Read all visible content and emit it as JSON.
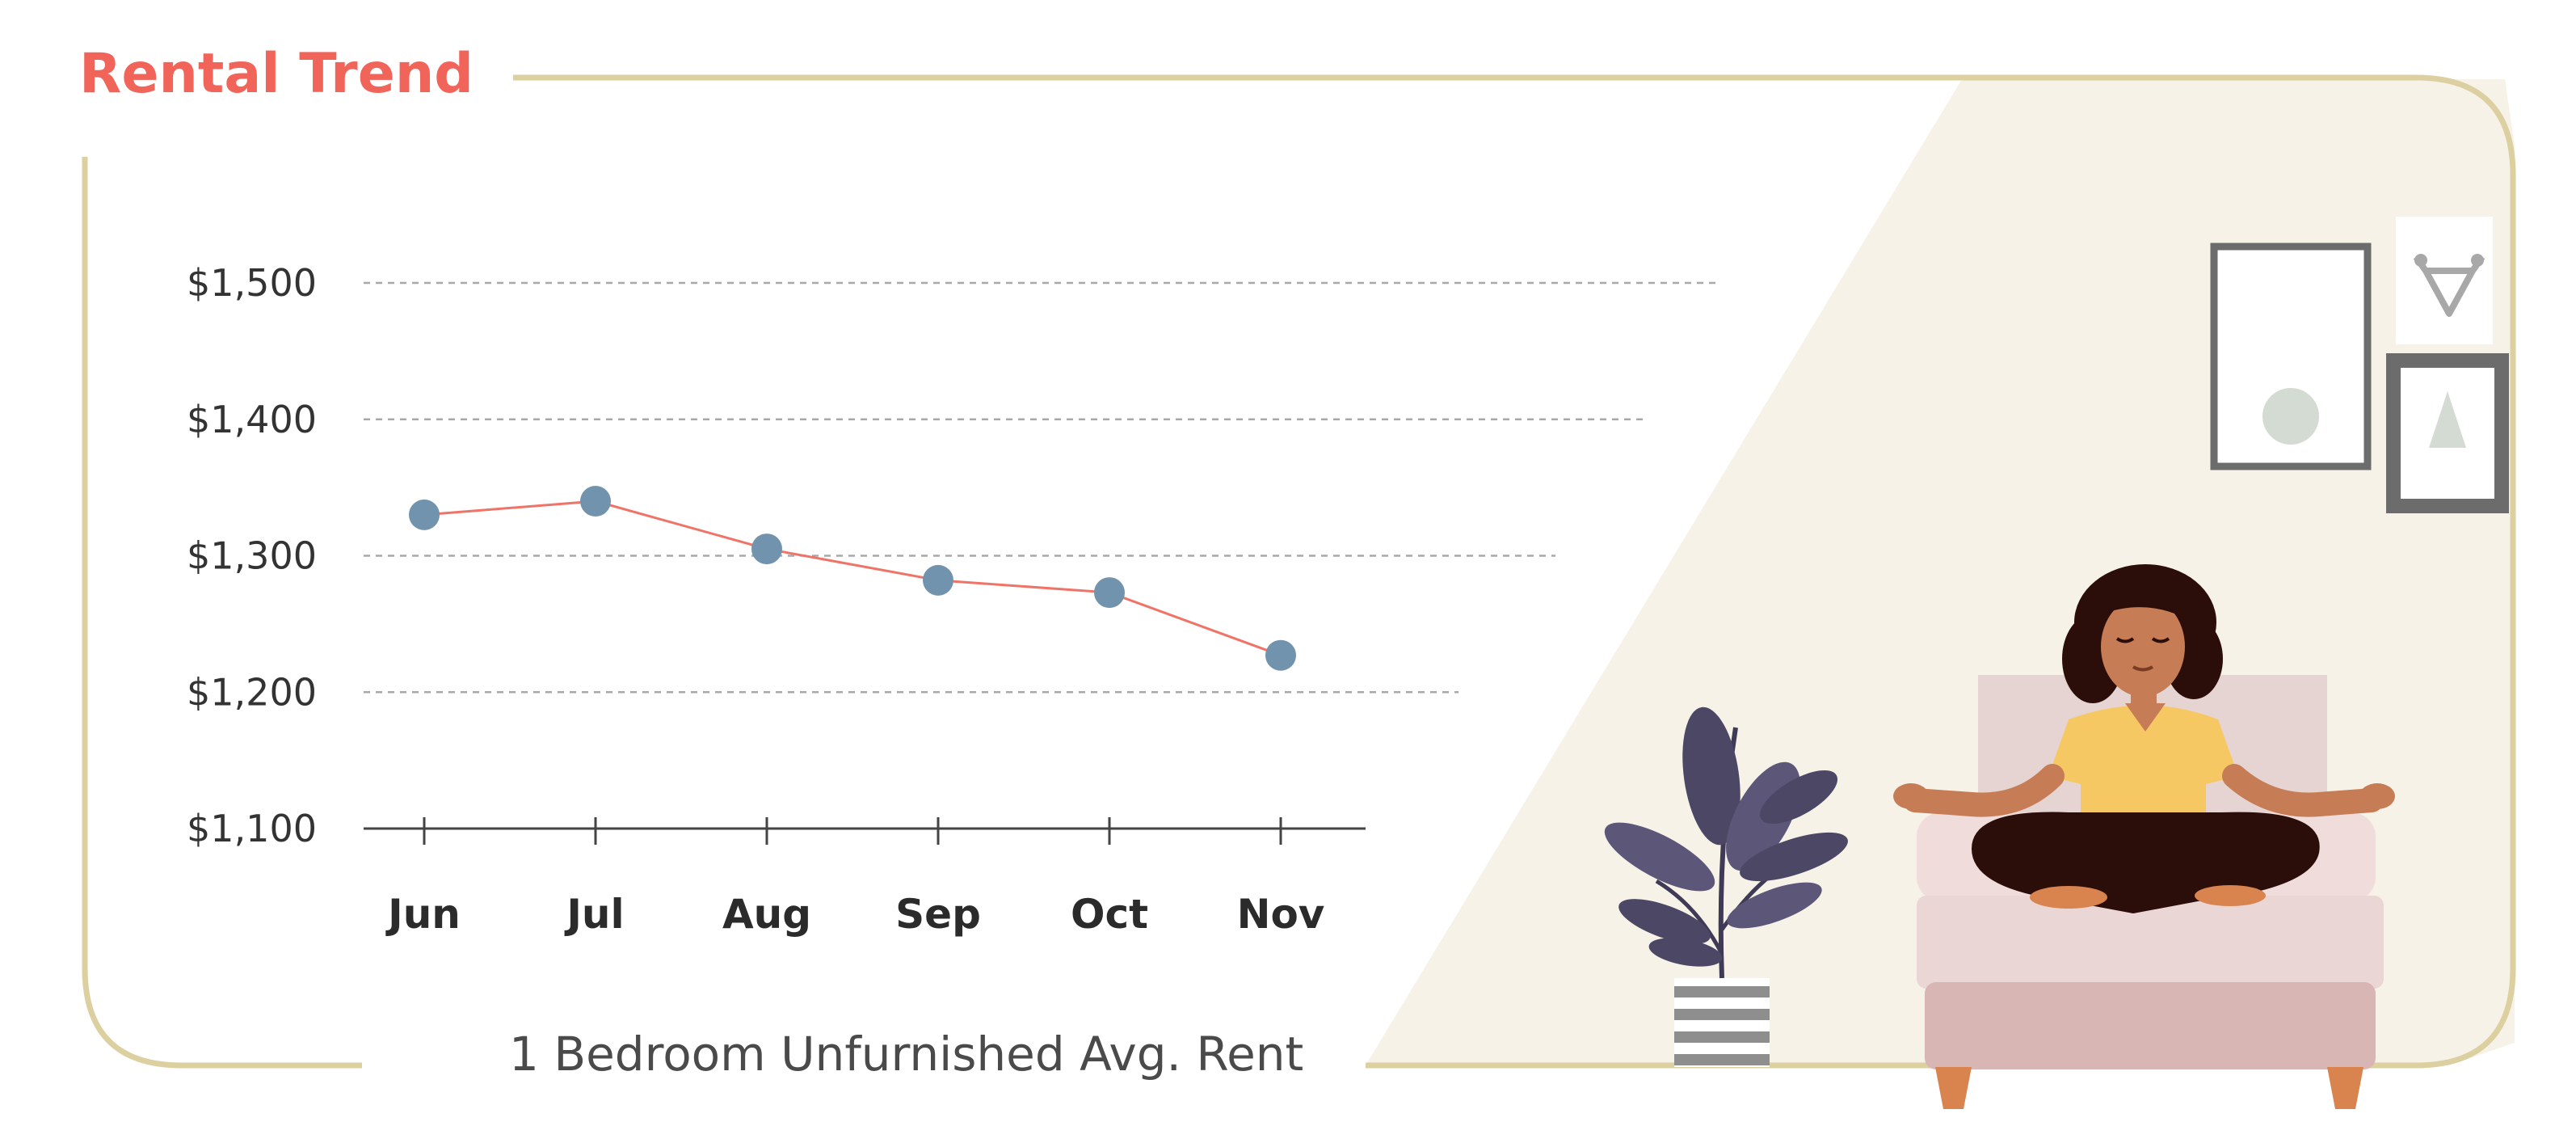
{
  "title": "Rental Trend",
  "caption": "1 Bedroom Unfurnished Avg. Rent",
  "colors": {
    "title": "#f1645a",
    "line": "#ef7467",
    "marker": "#7293ad",
    "frame": "#dccfa0",
    "room": "#f6f2e7"
  },
  "chart_data": {
    "type": "line",
    "title": "Rental Trend",
    "xlabel": "",
    "ylabel": "",
    "categories": [
      "Jun",
      "Jul",
      "Aug",
      "Sep",
      "Oct",
      "Nov"
    ],
    "series": [
      {
        "values": [
          1330,
          1340,
          1305,
          1282,
          1273,
          1227
        ]
      }
    ],
    "ylim": [
      1100,
      1500
    ],
    "yticks": [
      1100,
      1200,
      1300,
      1400,
      1500
    ],
    "ytick_labels": [
      "$1,100",
      "$1,200",
      "$1,300",
      "$1,400",
      "$1,500"
    ],
    "grid": "horizontal dashed",
    "subtitle": "1 Bedroom Unfurnished Avg. Rent"
  }
}
